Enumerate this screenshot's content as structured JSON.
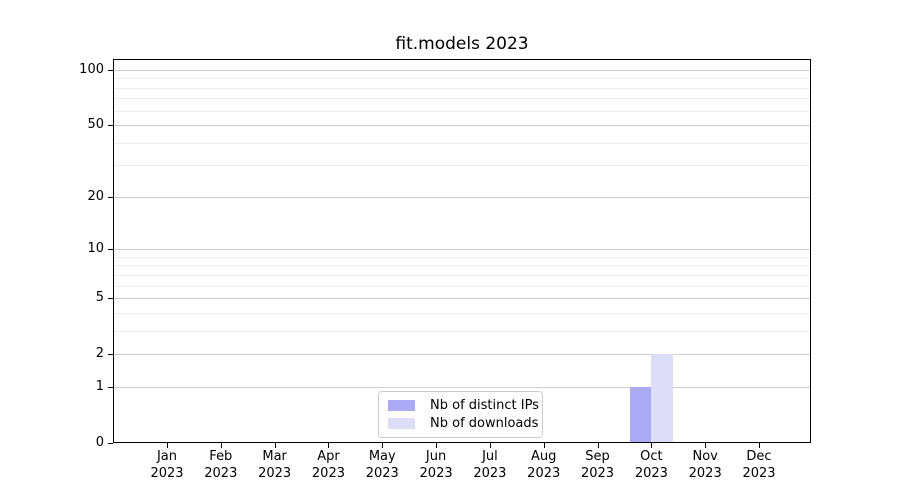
{
  "chart_data": {
    "type": "bar",
    "title": "fit.models 2023",
    "categories": [
      "Jan 2023",
      "Feb 2023",
      "Mar 2023",
      "Apr 2023",
      "May 2023",
      "Jun 2023",
      "Jul 2023",
      "Aug 2023",
      "Sep 2023",
      "Oct 2023",
      "Nov 2023",
      "Dec 2023"
    ],
    "x_tick_line1": [
      "Jan",
      "Feb",
      "Mar",
      "Apr",
      "May",
      "Jun",
      "Jul",
      "Aug",
      "Sep",
      "Oct",
      "Nov",
      "Dec"
    ],
    "x_tick_line2": "2023",
    "series": [
      {
        "name": "Nb of distinct IPs",
        "color": "#aaaaf5",
        "values": [
          0,
          0,
          0,
          0,
          0,
          0,
          0,
          0,
          0,
          1,
          0,
          0
        ]
      },
      {
        "name": "Nb of downloads",
        "color": "#ddddf8",
        "values": [
          0,
          0,
          0,
          0,
          0,
          0,
          0,
          0,
          0,
          2,
          0,
          0
        ]
      }
    ],
    "xlabel": "",
    "ylabel": "",
    "yscale": "log1p",
    "ylim": [
      0,
      115
    ],
    "y_major_ticks": [
      0,
      1,
      2,
      5,
      10,
      20,
      50,
      100
    ],
    "y_minor_gridlines": [
      3,
      4,
      6,
      7,
      8,
      9,
      30,
      40,
      60,
      70,
      80,
      90
    ],
    "grid": true,
    "legend_position": "bottom-center"
  },
  "colors": {
    "major_grid": "#cfcfcf",
    "minor_grid": "#ededed",
    "axis": "#000000",
    "background": "#ffffff"
  }
}
